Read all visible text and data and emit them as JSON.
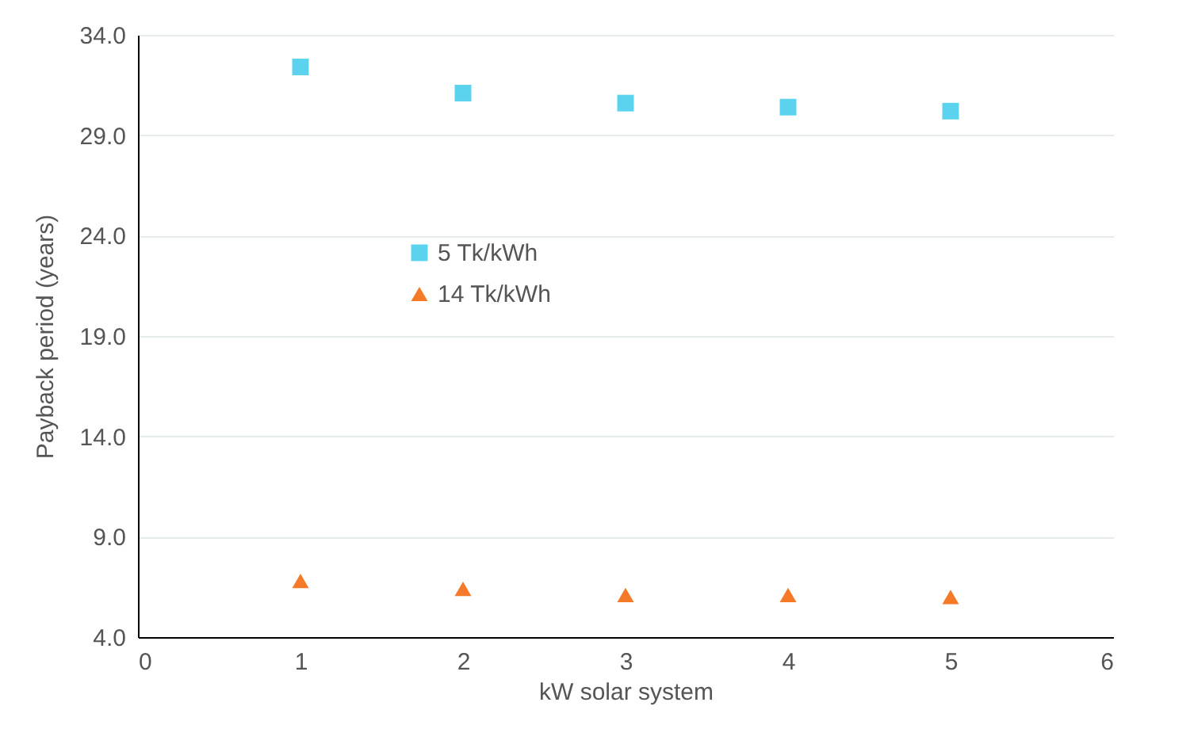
{
  "chart_data": {
    "type": "scatter",
    "xlabel": "kW solar system",
    "ylabel": "Payback period (years)",
    "x": [
      1,
      2,
      3,
      4,
      5
    ],
    "series": [
      {
        "name": "5 Tk/kWh",
        "color": "#5bd3ee",
        "marker": "square",
        "values": [
          32.4,
          31.1,
          30.6,
          30.4,
          30.2
        ]
      },
      {
        "name": "14 Tk/kWh",
        "color": "#f47a2a",
        "marker": "triangle",
        "values": [
          6.8,
          6.4,
          6.1,
          6.1,
          6.0
        ]
      }
    ],
    "xlim": [
      0,
      6
    ],
    "xticks": [
      0,
      1,
      2,
      3,
      4,
      5,
      6
    ],
    "ylim": [
      4,
      34
    ],
    "yticks": [
      {
        "value": 4,
        "label": "4.0"
      },
      {
        "value": 9,
        "label": "9.0"
      },
      {
        "value": 14,
        "label": "14.0"
      },
      {
        "value": 19,
        "label": "19.0"
      },
      {
        "value": 24,
        "label": "24.0"
      },
      {
        "value": 29,
        "label": "29.0"
      },
      {
        "value": 34,
        "label": "34.0"
      }
    ],
    "grid": "y",
    "legend": "left"
  }
}
